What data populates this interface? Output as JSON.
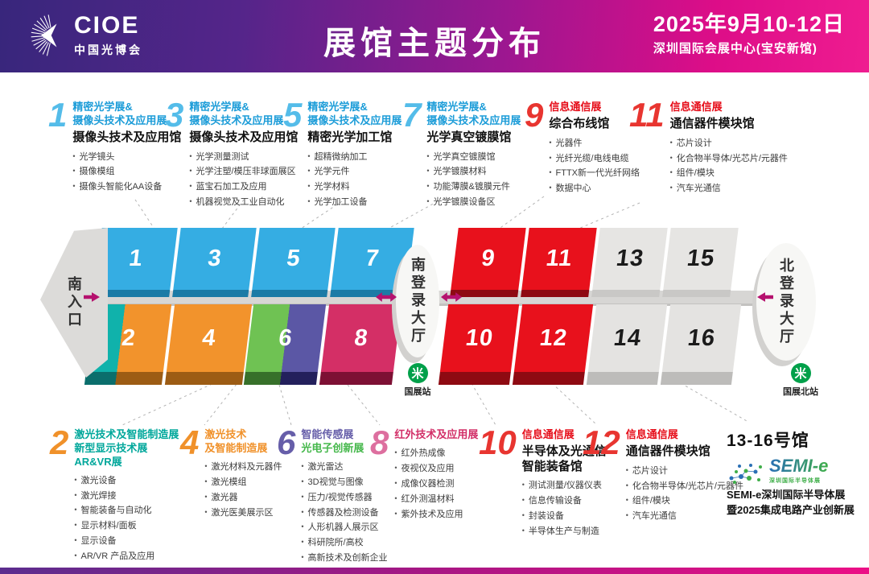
{
  "header": {
    "logo_text": "CIOE",
    "logo_subtitle": "中国光博会",
    "title": "展馆主题分布",
    "date": "2025年9月10-12日",
    "venue": "深圳国际会展中心(宝安新馆)"
  },
  "palette": {
    "blue": "#1b9cd8",
    "lightblue": "#54bce9",
    "red": "#e83530",
    "darkred": "#e60e1a",
    "orange": "#f0912a",
    "teal": "#00a79b",
    "purple": "#665ea9",
    "green": "#46b84c",
    "crimson": "#d22f68",
    "pink": "#dd6f9f",
    "black": "#111111",
    "magenta": "#b5116e"
  },
  "sections": [
    {
      "num": "1",
      "numColor": "lightblue",
      "title": [
        {
          "text": "精密光学展&",
          "color": "blue"
        },
        {
          "text": "摄像头技术及应用展",
          "color": "blue"
        }
      ],
      "subtitle": [
        "摄像头技术及应用馆"
      ],
      "items": [
        "光学镜头",
        "摄像模组",
        "摄像头智能化AA设备"
      ]
    },
    {
      "num": "3",
      "numColor": "lightblue",
      "title": [
        {
          "text": "精密光学展&",
          "color": "blue"
        },
        {
          "text": "摄像头技术及应用展",
          "color": "blue"
        }
      ],
      "subtitle": [
        "摄像头技术及应用馆"
      ],
      "items": [
        "光学测量测试",
        "光学注塑/模压非球面展区",
        "蓝宝石加工及应用",
        "机器视觉及工业自动化"
      ]
    },
    {
      "num": "5",
      "numColor": "lightblue",
      "title": [
        {
          "text": "精密光学展&",
          "color": "blue"
        },
        {
          "text": "摄像头技术及应用展",
          "color": "blue"
        }
      ],
      "subtitle": [
        "精密光学加工馆"
      ],
      "items": [
        "超精微纳加工",
        "光学元件",
        "光学材料",
        "光学加工设备"
      ]
    },
    {
      "num": "7",
      "numColor": "lightblue",
      "title": [
        {
          "text": "精密光学展&",
          "color": "blue"
        },
        {
          "text": "摄像头技术及应用展",
          "color": "blue"
        }
      ],
      "subtitle": [
        "光学真空镀膜馆"
      ],
      "items": [
        "光学真空镀膜馆",
        "光学镀膜材料",
        "功能薄膜&镀膜元件",
        "光学镀膜设备区"
      ]
    },
    {
      "num": "9",
      "numColor": "red",
      "title": [
        {
          "text": "信息通信展",
          "color": "darkred"
        }
      ],
      "subtitle": [
        "综合布线馆"
      ],
      "items": [
        "光器件",
        "光纤光缆/电线电缆",
        "FTTX新一代光纤网络",
        "数据中心"
      ]
    },
    {
      "num": "11",
      "numColor": "red",
      "title": [
        {
          "text": "信息通信展",
          "color": "darkred"
        }
      ],
      "subtitle": [
        "通信器件模块馆"
      ],
      "items": [
        "芯片设计",
        "化合物半导体/光芯片/元器件",
        "组件/模块",
        "汽车光通信"
      ]
    },
    {
      "num": "2",
      "numColor": "orange",
      "title": [
        {
          "text": "激光技术及智能制造展",
          "color": "teal"
        },
        {
          "text": "新型显示技术展",
          "color": "teal"
        },
        {
          "text": "AR&VR展",
          "color": "teal"
        }
      ],
      "subtitle": null,
      "items": [
        "激光设备",
        "激光焊接",
        "智能装备与自动化",
        "显示材料/面板",
        "显示设备",
        "AR/VR 产品及应用"
      ]
    },
    {
      "num": "4",
      "numColor": "orange",
      "title": [
        {
          "text": "激光技术",
          "color": "orange"
        },
        {
          "text": "及智能制造展",
          "color": "orange"
        }
      ],
      "subtitle": null,
      "items": [
        "激光材料及元器件",
        "激光模组",
        "激光器",
        "激光医美展示区"
      ]
    },
    {
      "num": "6",
      "numColor": "purple",
      "title": [
        {
          "text": "智能传感展",
          "color": "purple"
        },
        {
          "text": "光电子创新展",
          "color": "green"
        }
      ],
      "subtitle": null,
      "items": [
        "激光雷达",
        "3D视觉与图像",
        "压力/视觉传感器",
        "传感器及检测设备",
        "人形机器人展示区",
        "科研院所/高校",
        "高新技术及创新企业"
      ]
    },
    {
      "num": "8",
      "numColor": "pink",
      "title": [
        {
          "text": "红外技术及应用展",
          "color": "crimson"
        }
      ],
      "subtitle": null,
      "items": [
        "红外热成像",
        "夜视仪及应用",
        "成像仪器检测",
        "红外测温材料",
        "紫外技术及应用"
      ]
    },
    {
      "num": "10",
      "numColor": "red",
      "title": [
        {
          "text": "信息通信展",
          "color": "darkred"
        }
      ],
      "subtitle": [
        "半导体及光通信",
        "智能装备馆"
      ],
      "items": [
        "测试测量/仪器仪表",
        "信息传输设备",
        "封装设备",
        "半导体生产与制造"
      ]
    },
    {
      "num": "12",
      "numColor": "red",
      "title": [
        {
          "text": "信息通信展",
          "color": "darkred"
        }
      ],
      "subtitle": [
        "通信器件模块馆"
      ],
      "items": [
        "芯片设计",
        "化合物半导体/光芯片/元器件",
        "组件/模块",
        "汽车光通信"
      ]
    }
  ],
  "map": {
    "south_entrance": "南入口",
    "south_lobby": "南登录大厅",
    "north_lobby": "北登录大厅",
    "metro_south": "国展站",
    "metro_north": "国展北站",
    "halls": [
      {
        "num": "1",
        "faces": [
          "#35ade3"
        ],
        "sides": [
          "#1b7ba6"
        ],
        "textColor": "#ffffff"
      },
      {
        "num": "3",
        "faces": [
          "#35ade3"
        ],
        "sides": [
          "#1b7ba6"
        ],
        "textColor": "#ffffff"
      },
      {
        "num": "5",
        "faces": [
          "#35ade3"
        ],
        "sides": [
          "#1b7ba6"
        ],
        "textColor": "#ffffff"
      },
      {
        "num": "7",
        "faces": [
          "#35ade3"
        ],
        "sides": [
          "#1b7ba6"
        ],
        "textColor": "#ffffff"
      },
      {
        "num": "9",
        "faces": [
          "#e8111c"
        ],
        "sides": [
          "#8e0a12"
        ],
        "textColor": "#ffffff"
      },
      {
        "num": "11",
        "faces": [
          "#e8111c"
        ],
        "sides": [
          "#8e0a12"
        ],
        "textColor": "#ffffff"
      },
      {
        "num": "13",
        "faces": [
          "#e6e5e3"
        ],
        "sides": [
          "#c9c8c6"
        ],
        "textColor": "#1b1b1b"
      },
      {
        "num": "15",
        "faces": [
          "#e6e5e3"
        ],
        "sides": [
          "#c9c8c6"
        ],
        "textColor": "#1b1b1b"
      },
      {
        "num": "2",
        "faces": [
          "#10b2ab",
          "#f2932c"
        ],
        "split": 40,
        "sides": [
          "#0b6e6c",
          "#9c5c14"
        ],
        "textColor": "#ffffff"
      },
      {
        "num": "4",
        "faces": [
          "#f2932c"
        ],
        "sides": [
          "#9c5c14"
        ],
        "textColor": "#ffffff"
      },
      {
        "num": "6",
        "faces": [
          "#6fc253",
          "#5b57a5"
        ],
        "split": 50,
        "sides": [
          "#37702a",
          "#23205c"
        ],
        "textColor": "#ffffff"
      },
      {
        "num": "8",
        "faces": [
          "#d42f66"
        ],
        "sides": [
          "#7d1034"
        ],
        "textColor": "#ffffff"
      },
      {
        "num": "10",
        "faces": [
          "#e8111c"
        ],
        "sides": [
          "#8e0a12"
        ],
        "textColor": "#ffffff"
      },
      {
        "num": "12",
        "faces": [
          "#e8111c"
        ],
        "sides": [
          "#8e0a12"
        ],
        "textColor": "#ffffff"
      },
      {
        "num": "14",
        "faces": [
          "#e4e3e1"
        ],
        "sides": [
          "#bdbcba"
        ],
        "textColor": "#1b1b1b"
      },
      {
        "num": "16",
        "faces": [
          "#e4e3e1"
        ],
        "sides": [
          "#bdbcba"
        ],
        "textColor": "#1b1b1b"
      }
    ]
  },
  "semi_block": {
    "hall_label": "13-16号馆",
    "logo_text": "SEMI-e",
    "logo_subtext": "深圳国际半导体展",
    "line1": "SEMI-e深圳国际半导体展",
    "line2": "暨2025集成电路产业创新展"
  }
}
